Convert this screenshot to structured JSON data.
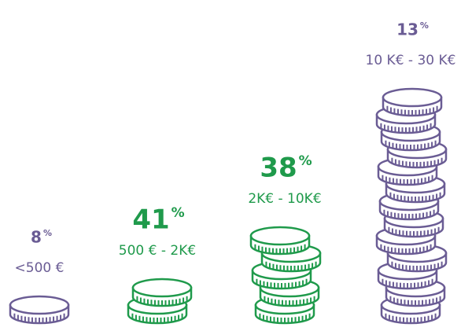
{
  "chart_data": {
    "type": "coin-stacks",
    "categories": [
      "<500 €",
      "500 € - 2K€",
      "2K€ - 10K€",
      "10 K€ - 30 K€"
    ],
    "values": [
      8,
      41,
      38,
      13
    ],
    "unit": "%",
    "coin_counts": [
      1,
      2,
      5,
      13
    ],
    "colors": [
      "#6a5c94",
      "#1f9a4b",
      "#1f9a4b",
      "#6a5c94"
    ],
    "highlight": [
      false,
      true,
      true,
      false
    ]
  }
}
